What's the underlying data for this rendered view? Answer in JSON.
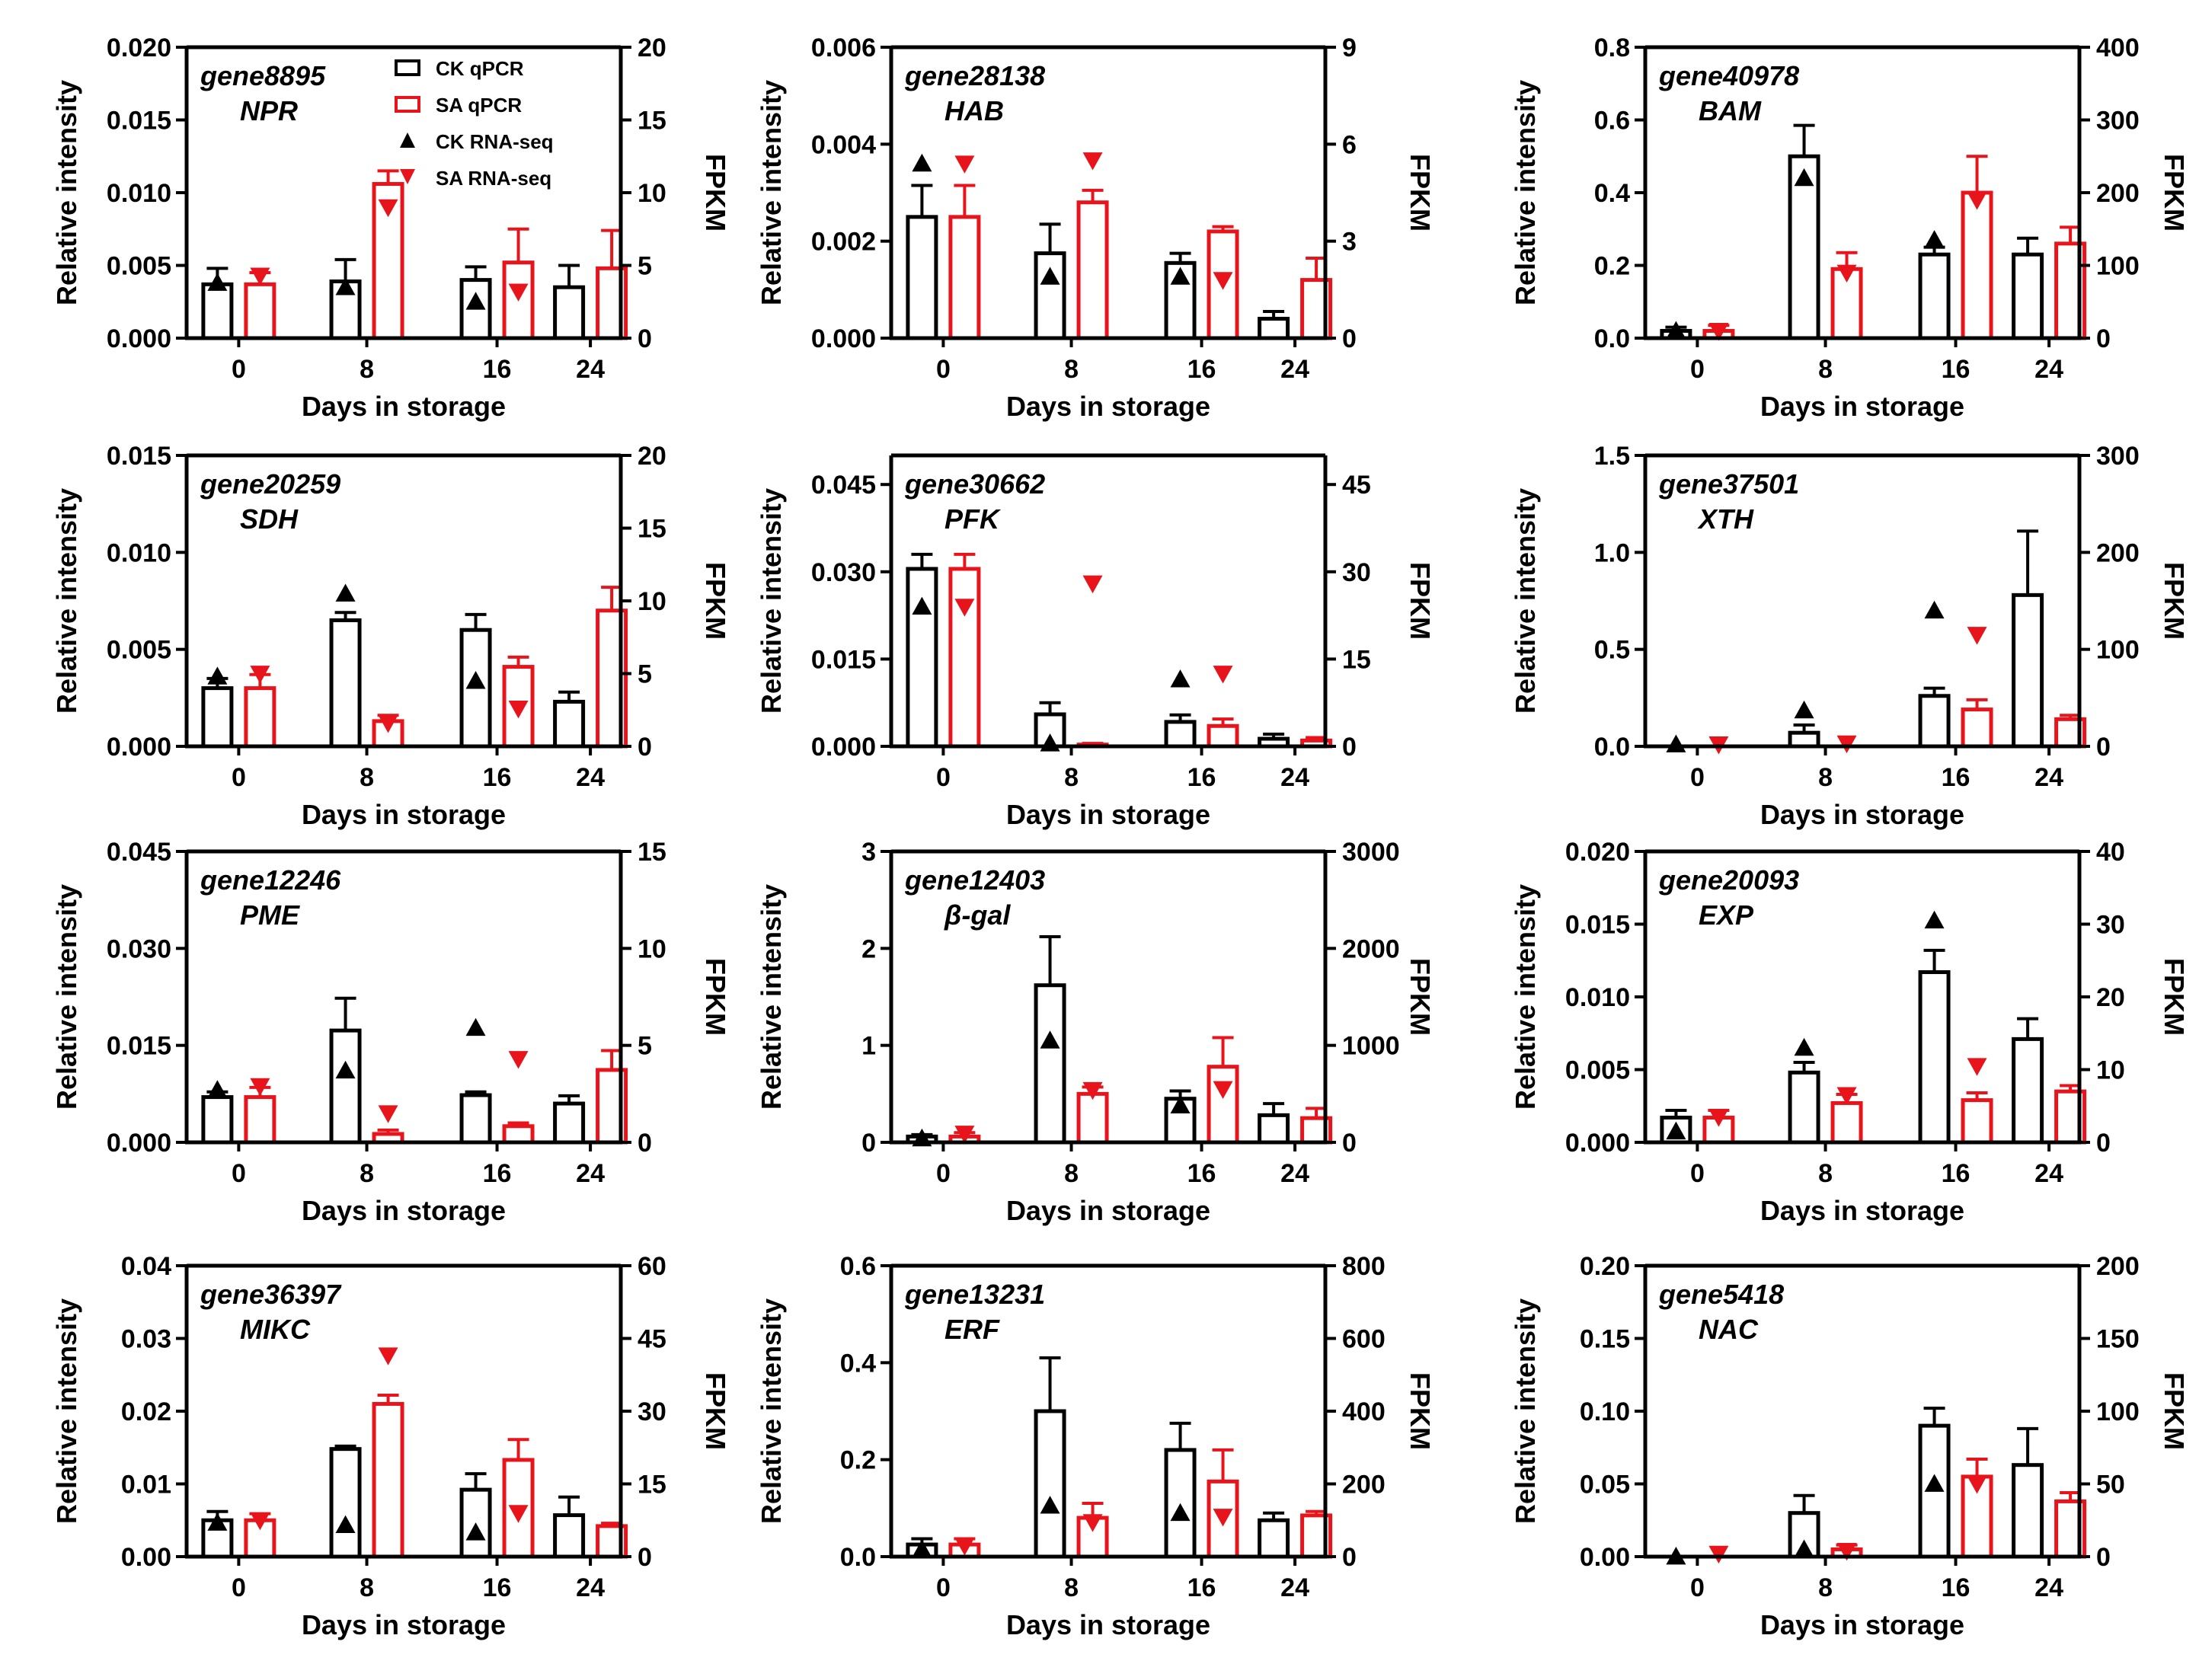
{
  "colors": {
    "ck": "#000000",
    "sa": "#e8141c"
  },
  "legend": {
    "ck_qpcr": "CK qPCR",
    "sa_qpcr": "SA qPCR",
    "ck_rnaseq": "CK RNA-seq",
    "sa_rnaseq": "SA RNA-seq"
  },
  "chart_data": [
    {
      "type": "bar",
      "gene": "gene8895",
      "name": "NPR",
      "categories": [
        "0",
        "8",
        "16",
        "24"
      ],
      "ylim": [
        0,
        0.02
      ],
      "yticks": [
        "0.000",
        "0.005",
        "0.010",
        "0.015",
        "0.020"
      ],
      "ylabel": "Relative intensity",
      "y2lim": [
        0,
        20
      ],
      "y2ticks": [
        "0",
        "5",
        "10",
        "15",
        "20"
      ],
      "y2label": "FPKM",
      "xlabel": "Days in storage",
      "series": [
        {
          "name": "CK qPCR",
          "values": [
            0.0037,
            0.0039,
            0.004,
            0.0035
          ],
          "errors": [
            0.0011,
            0.0015,
            0.0009,
            0.0015
          ]
        },
        {
          "name": "SA qPCR",
          "values": [
            0.0037,
            0.0106,
            0.0052,
            0.0048
          ],
          "errors": [
            0.0008,
            0.0009,
            0.0023,
            0.0026
          ]
        },
        {
          "name": "CK RNA-seq",
          "values": [
            3.8,
            3.5,
            2.5,
            null
          ]
        },
        {
          "name": "SA RNA-seq",
          "values": [
            4.3,
            9.0,
            3.2,
            null
          ]
        }
      ]
    },
    {
      "type": "bar",
      "gene": "gene28138",
      "name": "HAB",
      "categories": [
        "0",
        "8",
        "16",
        "24"
      ],
      "ylim": [
        0,
        0.006
      ],
      "yticks": [
        "0.000",
        "0.002",
        "0.004",
        "0.006"
      ],
      "ylabel": "Relative intensity",
      "y2lim": [
        0,
        9
      ],
      "y2ticks": [
        "0",
        "3",
        "6",
        "9"
      ],
      "y2label": "FPKM",
      "xlabel": "Days in storage",
      "series": [
        {
          "name": "CK qPCR",
          "values": [
            0.0025,
            0.00175,
            0.00155,
            0.0004
          ],
          "errors": [
            0.00065,
            0.0006,
            0.0002,
            0.00015
          ]
        },
        {
          "name": "SA qPCR",
          "values": [
            0.0025,
            0.0028,
            0.0022,
            0.0012
          ],
          "errors": [
            0.00065,
            0.00025,
            0.0001,
            0.00045
          ]
        },
        {
          "name": "CK RNA-seq",
          "values": [
            5.4,
            1.9,
            1.9,
            null
          ]
        },
        {
          "name": "SA RNA-seq",
          "values": [
            5.4,
            5.5,
            1.8,
            null
          ]
        }
      ]
    },
    {
      "type": "bar",
      "gene": "gene40978",
      "name": "BAM",
      "categories": [
        "0",
        "8",
        "16",
        "24"
      ],
      "ylim": [
        0,
        0.8
      ],
      "yticks": [
        "0.0",
        "0.2",
        "0.4",
        "0.6",
        "0.8"
      ],
      "ylabel": "Relative intensity",
      "y2lim": [
        0,
        400
      ],
      "y2ticks": [
        "0",
        "100",
        "200",
        "300",
        "400"
      ],
      "y2label": "FPKM",
      "xlabel": "Days in storage",
      "series": [
        {
          "name": "CK qPCR",
          "values": [
            0.02,
            0.5,
            0.23,
            0.23
          ],
          "errors": [
            0.01,
            0.085,
            0.02,
            0.045
          ]
        },
        {
          "name": "SA qPCR",
          "values": [
            0.02,
            0.19,
            0.4,
            0.26
          ],
          "errors": [
            0.015,
            0.045,
            0.1,
            0.045
          ]
        },
        {
          "name": "CK RNA-seq",
          "values": [
            10,
            220,
            135,
            null
          ]
        },
        {
          "name": "SA RNA-seq",
          "values": [
            10,
            90,
            190,
            null
          ]
        }
      ]
    },
    {
      "type": "bar",
      "gene": "gene20259",
      "name": "SDH",
      "categories": [
        "0",
        "8",
        "16",
        "24"
      ],
      "ylim": [
        0,
        0.015
      ],
      "yticks": [
        "0.000",
        "0.005",
        "0.010",
        "0.015"
      ],
      "ylabel": "Relative intensity",
      "y2lim": [
        0,
        20
      ],
      "y2ticks": [
        "0",
        "5",
        "10",
        "15",
        "20"
      ],
      "y2label": "FPKM",
      "xlabel": "Days in storage",
      "series": [
        {
          "name": "CK qPCR",
          "values": [
            0.003,
            0.0065,
            0.006,
            0.0023
          ],
          "errors": [
            0.0005,
            0.0004,
            0.0008,
            0.0005
          ]
        },
        {
          "name": "SA qPCR",
          "values": [
            0.003,
            0.0013,
            0.0041,
            0.007
          ],
          "errors": [
            0.0007,
            0.0003,
            0.0005,
            0.0012
          ]
        },
        {
          "name": "CK RNA-seq",
          "values": [
            4.8,
            10.5,
            4.5,
            null
          ]
        },
        {
          "name": "SA RNA-seq",
          "values": [
            5.0,
            1.6,
            2.6,
            null
          ]
        }
      ]
    },
    {
      "type": "bar",
      "gene": "gene30662",
      "name": "PFK",
      "categories": [
        "0",
        "8",
        "16",
        "24"
      ],
      "ylim": [
        0,
        0.05
      ],
      "yticks": [
        "0.000",
        "0.015",
        "0.030",
        "0.045"
      ],
      "ylabel": "Relative intensity",
      "y2lim": [
        0,
        50
      ],
      "y2ticks": [
        "0",
        "15",
        "30",
        "45"
      ],
      "y2label": "FPKM",
      "xlabel": "Days in storage",
      "series": [
        {
          "name": "CK qPCR",
          "values": [
            0.0305,
            0.0055,
            0.0042,
            0.0013
          ],
          "errors": [
            0.0025,
            0.002,
            0.0012,
            0.0008
          ]
        },
        {
          "name": "SA qPCR",
          "values": [
            0.0305,
            0.0003,
            0.0035,
            0.001
          ],
          "errors": [
            0.0025,
            0.0002,
            0.0012,
            0.0005
          ]
        },
        {
          "name": "CK RNA-seq",
          "values": [
            24,
            0.5,
            11.5,
            null
          ]
        },
        {
          "name": "SA RNA-seq",
          "values": [
            24,
            28,
            12.5,
            null
          ]
        }
      ]
    },
    {
      "type": "bar",
      "gene": "gene37501",
      "name": "XTH",
      "categories": [
        "0",
        "8",
        "16",
        "24"
      ],
      "ylim": [
        0,
        1.5
      ],
      "yticks": [
        "0.0",
        "0.5",
        "1.0",
        "1.5"
      ],
      "ylabel": "Relative intensity",
      "y2lim": [
        0,
        300
      ],
      "y2ticks": [
        "0",
        "100",
        "200",
        "300"
      ],
      "y2label": "FPKM",
      "xlabel": "Days in storage",
      "series": [
        {
          "name": "CK qPCR",
          "values": [
            0.0,
            0.07,
            0.26,
            0.78
          ],
          "errors": [
            0.0,
            0.04,
            0.04,
            0.33
          ]
        },
        {
          "name": "SA qPCR",
          "values": [
            0.0,
            0.0,
            0.19,
            0.14
          ],
          "errors": [
            0.0,
            0.0,
            0.05,
            0.02
          ]
        },
        {
          "name": "CK RNA-seq",
          "values": [
            2,
            37,
            140,
            null
          ]
        },
        {
          "name": "SA RNA-seq",
          "values": [
            2,
            3,
            115,
            null
          ]
        }
      ]
    },
    {
      "type": "bar",
      "gene": "gene12246",
      "name": "PME",
      "categories": [
        "0",
        "8",
        "16",
        "24"
      ],
      "ylim": [
        0,
        0.045
      ],
      "yticks": [
        "0.000",
        "0.015",
        "0.030",
        "0.045"
      ],
      "ylabel": "Relative intensity",
      "y2lim": [
        0,
        15
      ],
      "y2ticks": [
        "0",
        "5",
        "10",
        "15"
      ],
      "y2label": "FPKM",
      "xlabel": "Days in storage",
      "series": [
        {
          "name": "CK qPCR",
          "values": [
            0.007,
            0.0173,
            0.0073,
            0.006
          ],
          "errors": [
            0.0008,
            0.005,
            0.0005,
            0.0012
          ]
        },
        {
          "name": "SA qPCR",
          "values": [
            0.007,
            0.0013,
            0.0025,
            0.0112
          ],
          "errors": [
            0.0015,
            0.0006,
            0.0005,
            0.003
          ]
        },
        {
          "name": "CK RNA-seq",
          "values": [
            2.7,
            3.7,
            5.9,
            null
          ]
        },
        {
          "name": "SA RNA-seq",
          "values": [
            2.9,
            1.5,
            4.3,
            null
          ]
        }
      ]
    },
    {
      "type": "bar",
      "gene": "gene12403",
      "name": "β-gal",
      "categories": [
        "0",
        "8",
        "16",
        "24"
      ],
      "ylim": [
        0,
        3
      ],
      "yticks": [
        "0",
        "1",
        "2",
        "3"
      ],
      "ylabel": "Relative intensity",
      "y2lim": [
        0,
        3000
      ],
      "y2ticks": [
        "0",
        "1000",
        "2000",
        "3000"
      ],
      "y2label": "FPKM",
      "xlabel": "Days in storage",
      "series": [
        {
          "name": "CK qPCR",
          "values": [
            0.06,
            1.62,
            0.45,
            0.28
          ],
          "errors": [
            0.02,
            0.5,
            0.08,
            0.12
          ]
        },
        {
          "name": "SA qPCR",
          "values": [
            0.06,
            0.5,
            0.78,
            0.25
          ],
          "errors": [
            0.04,
            0.07,
            0.3,
            0.1
          ]
        },
        {
          "name": "CK RNA-seq",
          "values": [
            40,
            1050,
            380,
            null
          ]
        },
        {
          "name": "SA RNA-seq",
          "values": [
            90,
            540,
            550,
            null
          ]
        }
      ]
    },
    {
      "type": "bar",
      "gene": "gene20093",
      "name": "EXP",
      "categories": [
        "0",
        "8",
        "16",
        "24"
      ],
      "ylim": [
        0,
        0.02
      ],
      "yticks": [
        "0.000",
        "0.005",
        "0.010",
        "0.015",
        "0.020"
      ],
      "ylabel": "Relative intensity",
      "y2lim": [
        0,
        40
      ],
      "y2ticks": [
        "0",
        "10",
        "20",
        "30",
        "40"
      ],
      "y2label": "FPKM",
      "xlabel": "Days in storage",
      "series": [
        {
          "name": "CK qPCR",
          "values": [
            0.0017,
            0.0048,
            0.0117,
            0.0071
          ],
          "errors": [
            0.0005,
            0.0007,
            0.0015,
            0.0014
          ]
        },
        {
          "name": "SA qPCR",
          "values": [
            0.0017,
            0.0027,
            0.0029,
            0.0035
          ],
          "errors": [
            0.0005,
            0.0006,
            0.0005,
            0.0004
          ]
        },
        {
          "name": "CK RNA-seq",
          "values": [
            1.5,
            13,
            30.5,
            null
          ]
        },
        {
          "name": "SA RNA-seq",
          "values": [
            3.5,
            6.5,
            10.5,
            null
          ]
        }
      ]
    },
    {
      "type": "bar",
      "gene": "gene36397",
      "name": "MIKC",
      "categories": [
        "0",
        "8",
        "16",
        "24"
      ],
      "ylim": [
        0,
        0.04
      ],
      "yticks": [
        "0.00",
        "0.01",
        "0.02",
        "0.03",
        "0.04"
      ],
      "ylabel": "Relative intensity",
      "y2lim": [
        0,
        60
      ],
      "y2ticks": [
        "0",
        "15",
        "30",
        "45",
        "60"
      ],
      "y2label": "FPKM",
      "xlabel": "Days in storage",
      "series": [
        {
          "name": "CK qPCR",
          "values": [
            0.005,
            0.0148,
            0.0092,
            0.0057
          ],
          "errors": [
            0.0012,
            0.0004,
            0.0022,
            0.0025
          ]
        },
        {
          "name": "SA qPCR",
          "values": [
            0.005,
            0.021,
            0.0133,
            0.0042
          ],
          "errors": [
            0.0009,
            0.0012,
            0.0028,
            0.0004
          ]
        },
        {
          "name": "CK RNA-seq",
          "values": [
            7,
            6.5,
            5,
            null
          ]
        },
        {
          "name": "SA RNA-seq",
          "values": [
            7.5,
            41.5,
            9,
            null
          ]
        }
      ]
    },
    {
      "type": "bar",
      "gene": "gene13231",
      "name": "ERF",
      "categories": [
        "0",
        "8",
        "16",
        "24"
      ],
      "ylim": [
        0,
        0.6
      ],
      "yticks": [
        "0.0",
        "0.2",
        "0.4",
        "0.6"
      ],
      "ylabel": "Relative intensity",
      "y2lim": [
        0,
        800
      ],
      "y2ticks": [
        "0",
        "200",
        "400",
        "600",
        "800"
      ],
      "y2label": "FPKM",
      "xlabel": "Days in storage",
      "series": [
        {
          "name": "CK qPCR",
          "values": [
            0.025,
            0.3,
            0.22,
            0.075
          ],
          "errors": [
            0.012,
            0.11,
            0.055,
            0.015
          ]
        },
        {
          "name": "SA qPCR",
          "values": [
            0.025,
            0.08,
            0.155,
            0.085
          ],
          "errors": [
            0.012,
            0.03,
            0.065,
            0.008
          ]
        },
        {
          "name": "CK RNA-seq",
          "values": [
            20,
            140,
            120,
            null
          ]
        },
        {
          "name": "SA RNA-seq",
          "values": [
            30,
            95,
            110,
            null
          ]
        }
      ]
    },
    {
      "type": "bar",
      "gene": "gene5418",
      "name": "NAC",
      "categories": [
        "0",
        "8",
        "16",
        "24"
      ],
      "ylim": [
        0,
        0.2
      ],
      "yticks": [
        "0.00",
        "0.05",
        "0.10",
        "0.15",
        "0.20"
      ],
      "ylabel": "Relative intensity",
      "y2lim": [
        0,
        200
      ],
      "y2ticks": [
        "0",
        "50",
        "100",
        "150",
        "200"
      ],
      "y2label": "FPKM",
      "xlabel": "Days in storage",
      "series": [
        {
          "name": "CK qPCR",
          "values": [
            0.0,
            0.03,
            0.09,
            0.063
          ],
          "errors": [
            0.0,
            0.012,
            0.012,
            0.025
          ]
        },
        {
          "name": "SA qPCR",
          "values": [
            0.0,
            0.005,
            0.055,
            0.038
          ],
          "errors": [
            0.0,
            0.003,
            0.012,
            0.006
          ]
        },
        {
          "name": "CK RNA-seq",
          "values": [
            0,
            5,
            50,
            null
          ]
        },
        {
          "name": "SA RNA-seq",
          "values": [
            2,
            4,
            50,
            null
          ]
        }
      ]
    }
  ]
}
